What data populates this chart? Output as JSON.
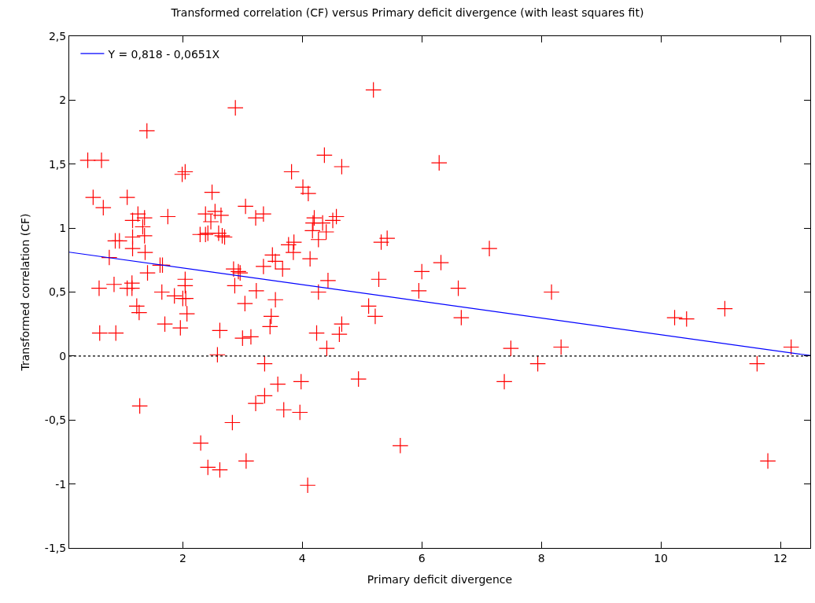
{
  "chart_data": {
    "type": "scatter",
    "title": "Transformed correlation (CF) versus Primary deficit divergence (with least squares fit)",
    "xlabel": "Primary deficit divergence",
    "ylabel": "Transformed correlation (CF)",
    "xlim": [
      0.1,
      12.5
    ],
    "xticks": [
      2,
      4,
      6,
      8,
      10,
      12
    ],
    "ylim": [
      -1.5,
      2.5
    ],
    "yticks": [
      {
        "value": -1.5,
        "label": "-1,5"
      },
      {
        "value": -1,
        "label": "-1"
      },
      {
        "value": -0.5,
        "label": "-0,5"
      },
      {
        "value": 0,
        "label": "0"
      },
      {
        "value": 0.5,
        "label": "0,5"
      },
      {
        "value": 1,
        "label": "1"
      },
      {
        "value": 1.5,
        "label": "1,5"
      },
      {
        "value": 2,
        "label": "2"
      },
      {
        "value": 2.5,
        "label": "2,5"
      }
    ],
    "legend": "top left",
    "ref_lines": [
      {
        "axis": "y",
        "value": 0,
        "color": "#000000",
        "line_style": "dotted"
      }
    ],
    "series": [
      {
        "color": "#ff0000",
        "marker": "cross",
        "x": [
          0.41,
          0.64,
          1.4,
          0.5,
          1.07,
          0.67,
          1.25,
          1.36,
          1.16,
          1.33,
          1.36,
          1.16,
          0.87,
          0.94,
          1.16,
          1.37,
          0.77,
          1.62,
          1.66,
          1.41,
          0.6,
          0.85,
          1.07,
          1.15,
          1.15,
          1.65,
          1.86,
          2.0,
          2.05,
          2.04,
          2.04,
          1.23,
          1.27,
          2.07,
          1.7,
          1.96,
          2.62,
          0.61,
          0.88,
          1.75,
          1.99,
          2.04,
          2.49,
          2.38,
          2.47,
          2.54,
          2.64,
          2.29,
          2.38,
          2.42,
          2.6,
          2.66,
          2.7,
          5.19,
          2.88,
          4.37,
          4.66,
          3.82,
          4.01,
          4.1,
          3.05,
          3.22,
          3.35,
          4.2,
          4.18,
          4.34,
          4.51,
          4.57,
          4.17,
          4.4,
          4.27,
          3.77,
          3.86,
          3.85,
          4.13,
          3.5,
          3.55,
          3.35,
          3.67,
          2.85,
          2.93,
          2.96,
          4.43,
          2.87,
          3.23,
          4.27,
          3.04,
          3.55,
          5.11,
          5.22,
          3.48,
          3.46,
          4.66,
          4.24,
          4.62,
          3.14,
          3.0,
          2.58,
          4.41,
          3.37,
          3.98,
          4.94,
          3.59,
          3.37,
          3.22,
          3.69,
          3.96,
          1.28,
          2.83,
          2.3,
          2.42,
          2.62,
          3.06,
          4.09,
          5.64,
          6.29,
          5.32,
          5.42,
          7.13,
          6.32,
          6.0,
          5.28,
          5.95,
          6.61,
          8.17,
          6.66,
          7.49,
          8.33,
          7.94,
          7.38,
          10.23,
          10.43,
          11.07,
          12.18,
          11.61,
          11.79
        ],
        "values": [
          1.53,
          1.53,
          1.76,
          1.24,
          1.24,
          1.16,
          1.11,
          1.08,
          1.06,
          1.01,
          0.94,
          0.93,
          0.9,
          0.9,
          0.84,
          0.81,
          0.77,
          0.71,
          0.71,
          0.65,
          0.53,
          0.56,
          0.53,
          0.57,
          0.53,
          0.5,
          0.47,
          0.45,
          0.45,
          0.6,
          0.55,
          0.39,
          0.34,
          0.33,
          0.25,
          0.22,
          0.2,
          0.18,
          0.18,
          1.09,
          1.42,
          1.44,
          1.28,
          1.11,
          1.05,
          1.13,
          1.1,
          0.95,
          0.95,
          0.96,
          0.96,
          0.94,
          0.93,
          2.08,
          1.94,
          1.57,
          1.48,
          1.44,
          1.32,
          1.27,
          1.17,
          1.08,
          1.11,
          1.08,
          1.04,
          1.04,
          1.06,
          1.09,
          0.98,
          0.97,
          0.91,
          0.87,
          0.89,
          0.81,
          0.76,
          0.79,
          0.74,
          0.7,
          0.68,
          0.68,
          0.66,
          0.65,
          0.59,
          0.55,
          0.51,
          0.5,
          0.41,
          0.44,
          0.39,
          0.31,
          0.31,
          0.23,
          0.25,
          0.18,
          0.17,
          0.15,
          0.14,
          0.01,
          0.06,
          -0.06,
          -0.2,
          -0.18,
          -0.22,
          -0.31,
          -0.37,
          -0.42,
          -0.44,
          -0.39,
          -0.52,
          -0.68,
          -0.87,
          -0.89,
          -0.82,
          -1.01,
          -0.7,
          1.51,
          0.89,
          0.92,
          0.84,
          0.73,
          0.66,
          0.6,
          0.51,
          0.53,
          0.5,
          0.3,
          0.06,
          0.07,
          -0.06,
          -0.2,
          0.3,
          0.29,
          0.37,
          0.07,
          -0.06,
          -0.82
        ]
      },
      {
        "type": "line",
        "name": "Y = 0,818 - 0,0651X",
        "color": "#0000ff",
        "marker": "none",
        "line_style": "solid",
        "x": [
          0.1,
          12.5
        ],
        "values": [
          0.812,
          0.004
        ]
      }
    ]
  }
}
